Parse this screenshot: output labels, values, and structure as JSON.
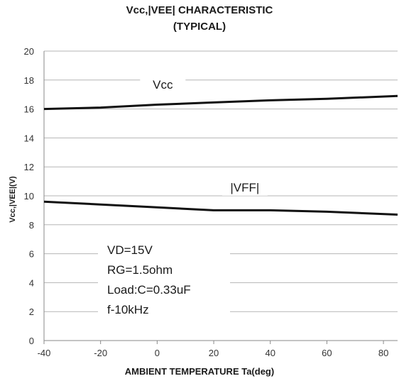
{
  "chart_data": {
    "type": "line",
    "title": "Vcc,|VEE| CHARACTERISTIC",
    "subtitle": "(TYPICAL)",
    "xlabel": "AMBIENT TEMPERATURE Ta(deg)",
    "ylabel": "Vcc,|VEE|(V)",
    "xlim": [
      -40,
      85
    ],
    "ylim": [
      0,
      20
    ],
    "xticks": [
      -40,
      -20,
      0,
      20,
      40,
      60,
      80
    ],
    "yticks": [
      0,
      2,
      4,
      6,
      8,
      10,
      12,
      14,
      16,
      18,
      20
    ],
    "grid": "horizontal",
    "series": [
      {
        "name": "Vcc",
        "x": [
          -40,
          -20,
          0,
          20,
          40,
          60,
          85
        ],
        "y": [
          16.0,
          16.1,
          16.3,
          16.45,
          16.6,
          16.7,
          16.9
        ],
        "color": "#111111"
      },
      {
        "name": "|VFF|",
        "x": [
          -40,
          -20,
          0,
          20,
          40,
          60,
          85
        ],
        "y": [
          9.6,
          9.4,
          9.2,
          9.0,
          9.0,
          8.9,
          8.7
        ],
        "color": "#111111"
      }
    ],
    "annotations": [
      "VD=15V",
      "RG=1.5ohm",
      "Load:C=0.33uF",
      "f-10kHz"
    ]
  }
}
